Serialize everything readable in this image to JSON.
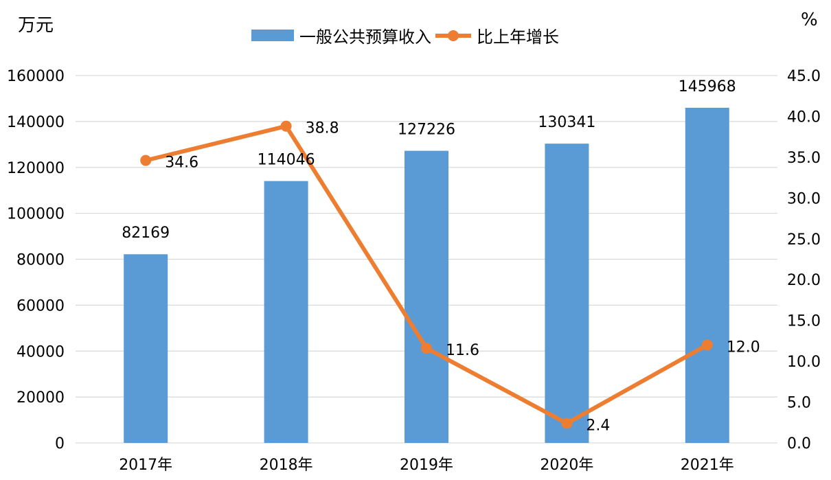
{
  "units": {
    "left": "万元",
    "right": "%"
  },
  "legend": {
    "bar_label": "一般公共预算收入",
    "line_label": "比上年增长"
  },
  "colors": {
    "bar": "#5b9bd5",
    "line": "#ed7d31",
    "grid": "#d9d9d9"
  },
  "chart_data": {
    "type": "bar",
    "categories": [
      "2017年",
      "2018年",
      "2019年",
      "2020年",
      "2021年"
    ],
    "series": [
      {
        "name": "一般公共预算收入",
        "type": "bar",
        "axis": "left",
        "values": [
          82169,
          114046,
          127226,
          130341,
          145968
        ],
        "labels": [
          "82169",
          "114046",
          "127226",
          "130341",
          "145968"
        ]
      },
      {
        "name": "比上年增长",
        "type": "line",
        "axis": "right",
        "values": [
          34.6,
          38.8,
          11.6,
          2.4,
          12.0
        ],
        "labels": [
          "34.6",
          "38.8",
          "11.6",
          "2.4",
          "12.0"
        ]
      }
    ],
    "y_left": {
      "label": "万元",
      "range": [
        0,
        160000
      ],
      "ticks": [
        "0",
        "20000",
        "40000",
        "60000",
        "80000",
        "100000",
        "120000",
        "140000",
        "160000"
      ]
    },
    "y_right": {
      "label": "%",
      "range": [
        0,
        45
      ],
      "ticks": [
        "0.0",
        "5.0",
        "10.0",
        "15.0",
        "20.0",
        "25.0",
        "30.0",
        "35.0",
        "40.0",
        "45.0"
      ]
    },
    "grid": true,
    "legend_position": "top"
  }
}
